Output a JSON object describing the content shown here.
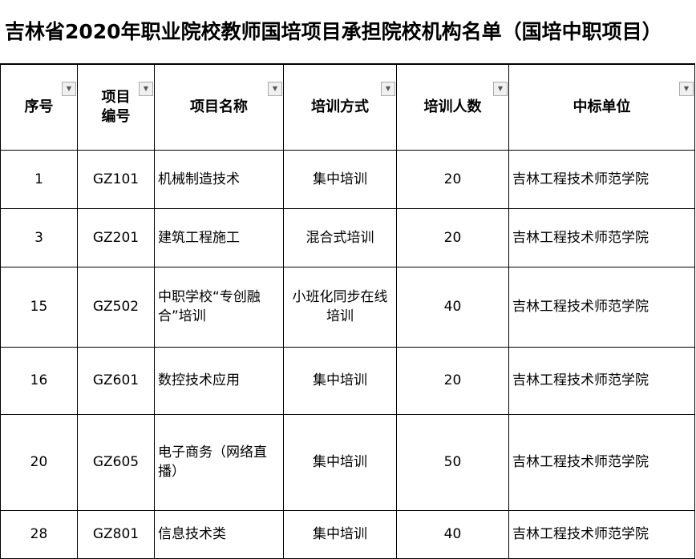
{
  "title": "吉林省2020年职业院校教师国培项目承担院校机构名单（国培中职项目）",
  "headers": [
    "序号",
    "项目\n编号",
    "项目名称",
    "培训方式",
    "培训人数",
    "中标单位"
  ],
  "filter_icon": "dropdown-arrow-icon",
  "rows": [
    [
      "1",
      "GZ101",
      "机械制造技术",
      "集中培训",
      "20",
      "吉林工程技术师范学院"
    ],
    [
      "3",
      "GZ201",
      "建筑工程施工",
      "混合式培训",
      "20",
      "吉林工程技术师范学院"
    ],
    [
      "15",
      "GZ502",
      "中职学校“专创融合”培训",
      "小班化同步在线培训",
      "40",
      "吉林工程技术师范学院"
    ],
    [
      "16",
      "GZ601",
      "数控技术应用",
      "集中培训",
      "20",
      "吉林工程技术师范学院"
    ],
    [
      "20",
      "GZ605",
      "电子商务（网络直播）",
      "集中培训",
      "50",
      "吉林工程技术师范学院"
    ],
    [
      "28",
      "GZ801",
      "信息技术类",
      "集中培训",
      "40",
      "吉林工程技术师范学院"
    ]
  ]
}
